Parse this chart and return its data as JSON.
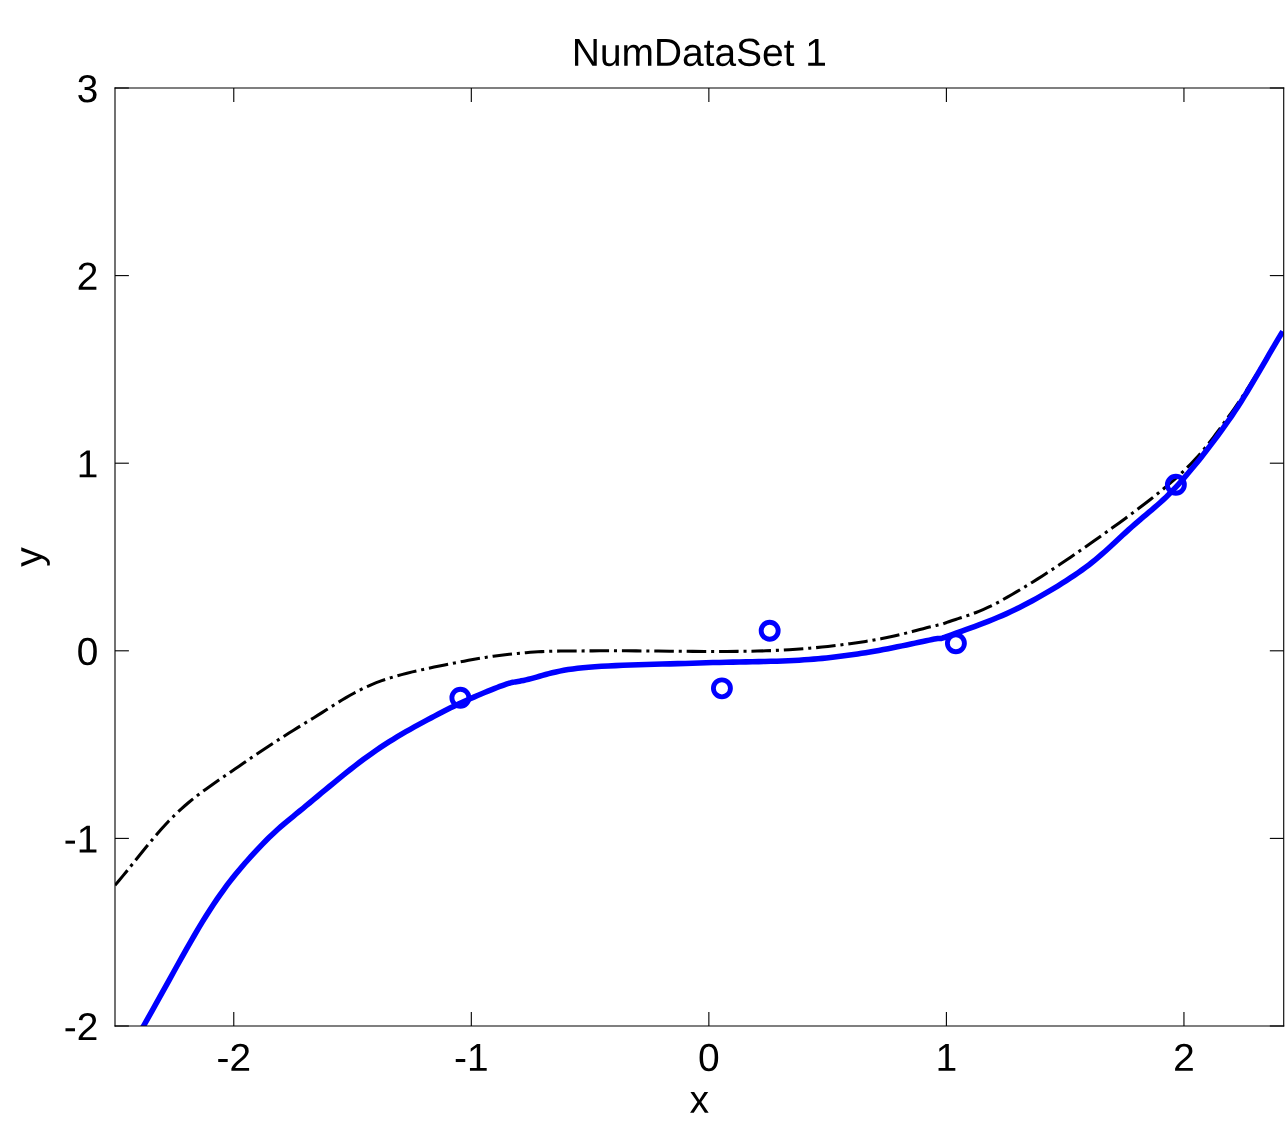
{
  "chart_data": {
    "type": "line",
    "title": "NumDataSet 1",
    "xlabel": "x",
    "ylabel": "y",
    "xlim": [
      -2.5,
      2.42
    ],
    "ylim": [
      -2,
      3
    ],
    "xticks": [
      -2,
      -1,
      0,
      1,
      2
    ],
    "yticks": [
      -2,
      -1,
      0,
      1,
      2,
      3
    ],
    "grid": false,
    "legend": false,
    "series": [
      {
        "color": "#000000",
        "line_style": "dashdot",
        "x": [
          -2.5,
          -2.24,
          -1.96,
          -1.68,
          -1.4,
          -1.05,
          -0.77,
          -0.46,
          0.24,
          0.66,
          0.94,
          1.01,
          1.22,
          1.57,
          1.975,
          2.2,
          2.41
        ],
        "values": [
          -1.25,
          -0.865,
          -0.6,
          -0.37,
          -0.17,
          -0.06,
          -0.01,
          0.0,
          0.0,
          0.05,
          0.13,
          0.155,
          0.26,
          0.54,
          0.93,
          1.27,
          1.69
        ]
      },
      {
        "color": "#0000ff",
        "line_style": "solid",
        "x": [
          -2.38,
          -2.1,
          -1.89,
          -1.68,
          -1.4,
          -1.12,
          -0.88,
          -0.77,
          -0.53,
          -0.04,
          0.38,
          0.66,
          0.94,
          1.01,
          1.29,
          1.57,
          1.78,
          1.975,
          2.2,
          2.41
        ],
        "values": [
          -2.0,
          -1.38,
          -1.045,
          -0.81,
          -0.53,
          -0.325,
          -0.19,
          -0.155,
          -0.09,
          -0.065,
          -0.05,
          -0.01,
          0.06,
          0.08,
          0.22,
          0.43,
          0.66,
          0.885,
          1.25,
          1.69
        ]
      },
      {
        "type": "scatter",
        "color": "#0000ff",
        "marker": "circle",
        "x": [
          -1.046,
          0.055,
          0.256,
          1.04,
          1.966
        ],
        "values": [
          -0.25,
          -0.2,
          0.107,
          0.04,
          0.885
        ]
      }
    ]
  }
}
